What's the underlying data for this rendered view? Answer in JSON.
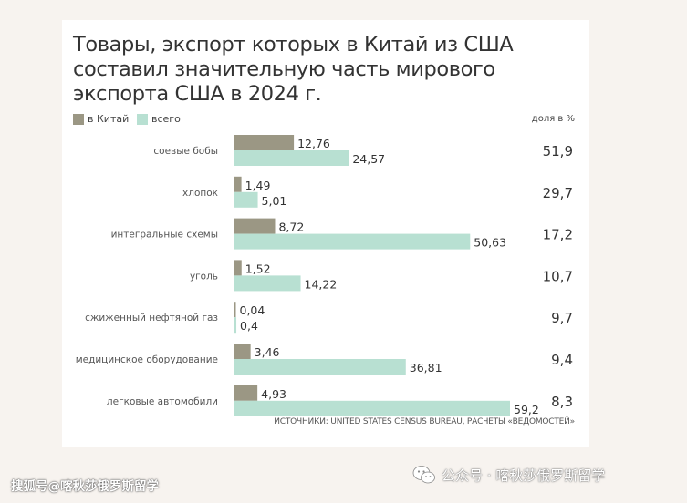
{
  "title_lines": [
    "Товары, экспорт которых в Китай из США",
    "составил значительную часть мирового",
    "экспорта США в 2024 г."
  ],
  "legend": [
    {
      "label": "в Китай",
      "color": "#9b9784"
    },
    {
      "label": "всего",
      "color": "#b8e0d2"
    }
  ],
  "share_header": "доля в %",
  "source": "ИСТОЧНИКИ: UNITED STATES CENSUS BUREAU, РАСЧЕТЫ «ВЕДОМОСТЕЙ»",
  "footer": {
    "left": "搜狐号@喀秋莎俄罗斯留学",
    "right": "公众号 · 喀秋莎俄罗斯留学",
    "icon": "wechat-icon"
  },
  "chart_data": {
    "type": "bar",
    "orientation": "horizontal",
    "title": "Товары, экспорт которых в Китай из США составил значительную часть мирового экспорта США в 2024 г.",
    "categories": [
      "соевые бобы",
      "хлопок",
      "интегральные схемы",
      "уголь",
      "сжиженный нефтяной газ",
      "медицинское оборудование",
      "легковые автомобили"
    ],
    "series": [
      {
        "name": "в Китай",
        "color": "#9b9784",
        "values": [
          "12,76",
          "1,49",
          "8,72",
          "1,52",
          "0,04",
          "3,46",
          "4,93"
        ]
      },
      {
        "name": "всего",
        "color": "#b8e0d2",
        "values": [
          "24,57",
          "5,01",
          "50,63",
          "14,22",
          "0,4",
          "36,81",
          "59,2"
        ]
      }
    ],
    "share_label": "доля в %",
    "share": [
      "51,9",
      "29,7",
      "17,2",
      "10,7",
      "9,7",
      "9,4",
      "8,3"
    ],
    "xlim": [
      0,
      62
    ],
    "grid": false,
    "legend_position": "top-left"
  }
}
